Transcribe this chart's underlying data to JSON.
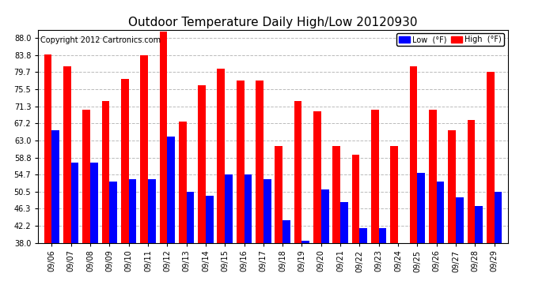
{
  "title": "Outdoor Temperature Daily High/Low 20120930",
  "copyright": "Copyright 2012 Cartronics.com",
  "legend_low": "Low  (°F)",
  "legend_high": "High  (°F)",
  "dates": [
    "09/06",
    "09/07",
    "09/08",
    "09/09",
    "09/10",
    "09/11",
    "09/12",
    "09/13",
    "09/14",
    "09/15",
    "09/16",
    "09/17",
    "09/18",
    "09/19",
    "09/20",
    "09/21",
    "09/22",
    "09/23",
    "09/24",
    "09/25",
    "09/26",
    "09/27",
    "09/28",
    "09/29"
  ],
  "high": [
    84.0,
    81.0,
    70.5,
    72.5,
    78.0,
    83.8,
    89.5,
    67.5,
    76.5,
    80.5,
    77.5,
    77.5,
    61.5,
    72.5,
    70.0,
    61.5,
    59.5,
    70.5,
    61.5,
    81.0,
    70.5,
    65.5,
    68.0,
    79.7
  ],
  "low": [
    65.5,
    57.5,
    57.5,
    53.0,
    53.5,
    53.5,
    64.0,
    50.5,
    49.5,
    54.7,
    54.7,
    53.5,
    43.5,
    38.5,
    51.0,
    48.0,
    41.5,
    41.5,
    38.0,
    55.0,
    53.0,
    49.0,
    47.0,
    50.5
  ],
  "ymin": 38.0,
  "ymax": 90.0,
  "yticks": [
    38.0,
    42.2,
    46.3,
    50.5,
    54.7,
    58.8,
    63.0,
    67.2,
    71.3,
    75.5,
    79.7,
    83.8,
    88.0
  ],
  "bar_width": 0.4,
  "high_color": "#ff0000",
  "low_color": "#0000ff",
  "bg_color": "#ffffff",
  "grid_color": "#bbbbbb",
  "title_fontsize": 11,
  "tick_fontsize": 7,
  "copyright_fontsize": 7
}
